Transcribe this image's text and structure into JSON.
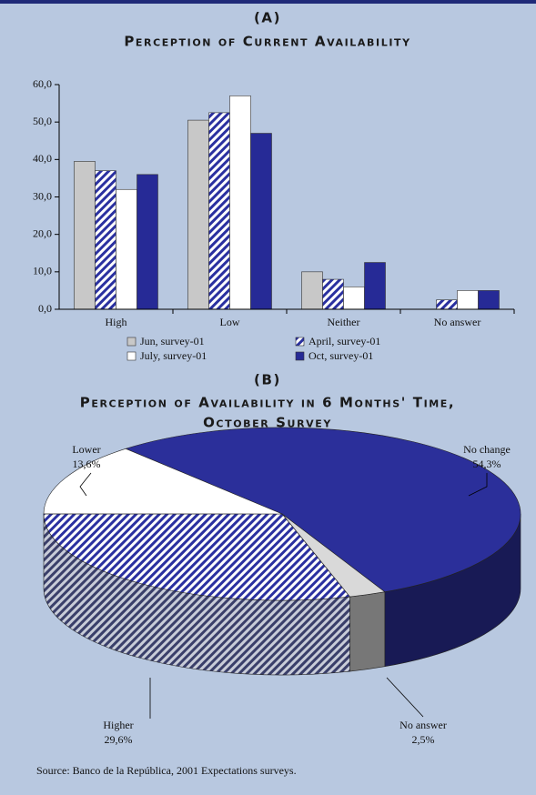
{
  "chart_data": [
    {
      "type": "bar",
      "panel": "(A)",
      "title": "Perception of Current Availability",
      "categories": [
        "High",
        "Low",
        "Neither",
        "No answer"
      ],
      "series": [
        {
          "name": "Jun, survey-01",
          "color": "#c8c8c8",
          "values": [
            39.5,
            50.5,
            10,
            0
          ]
        },
        {
          "name": "April, survey-01",
          "color": "#2a30a0",
          "hatch": true,
          "values": [
            37,
            52.5,
            8,
            2.5
          ]
        },
        {
          "name": "July, survey-01",
          "color": "#ffffff",
          "values": [
            32,
            57,
            6,
            5
          ]
        },
        {
          "name": "Oct, survey-01",
          "color": "#262a96",
          "values": [
            36,
            47,
            12.5,
            5
          ]
        }
      ],
      "ylim": [
        0,
        60
      ],
      "yticks": [
        {
          "value": 0,
          "label": "0,0"
        },
        {
          "value": 10,
          "label": "10,0"
        },
        {
          "value": 20,
          "label": "20,0"
        },
        {
          "value": 30,
          "label": "30,0"
        },
        {
          "value": 40,
          "label": "40,0"
        },
        {
          "value": 50,
          "label": "50,0"
        },
        {
          "value": 60,
          "label": "60,0"
        }
      ]
    },
    {
      "type": "pie",
      "panel": "(B)",
      "title": [
        "Perception of Availability in 6 Months' Time,",
        "October Survey"
      ],
      "labels": [
        "No change",
        "No answer",
        "Higher",
        "Lower"
      ],
      "values": [
        54.3,
        2.5,
        29.6,
        13.6
      ],
      "value_labels": [
        "54,3%",
        "2,5%",
        "29,6%",
        "13,6%"
      ],
      "colors": [
        "#2b2f9a",
        "#d9d9d9",
        "#2a30a0",
        "#ffffff"
      ],
      "hatched": [
        false,
        false,
        true,
        false
      ]
    }
  ],
  "source": "Source: Banco de la República, 2001 Expectations surveys."
}
